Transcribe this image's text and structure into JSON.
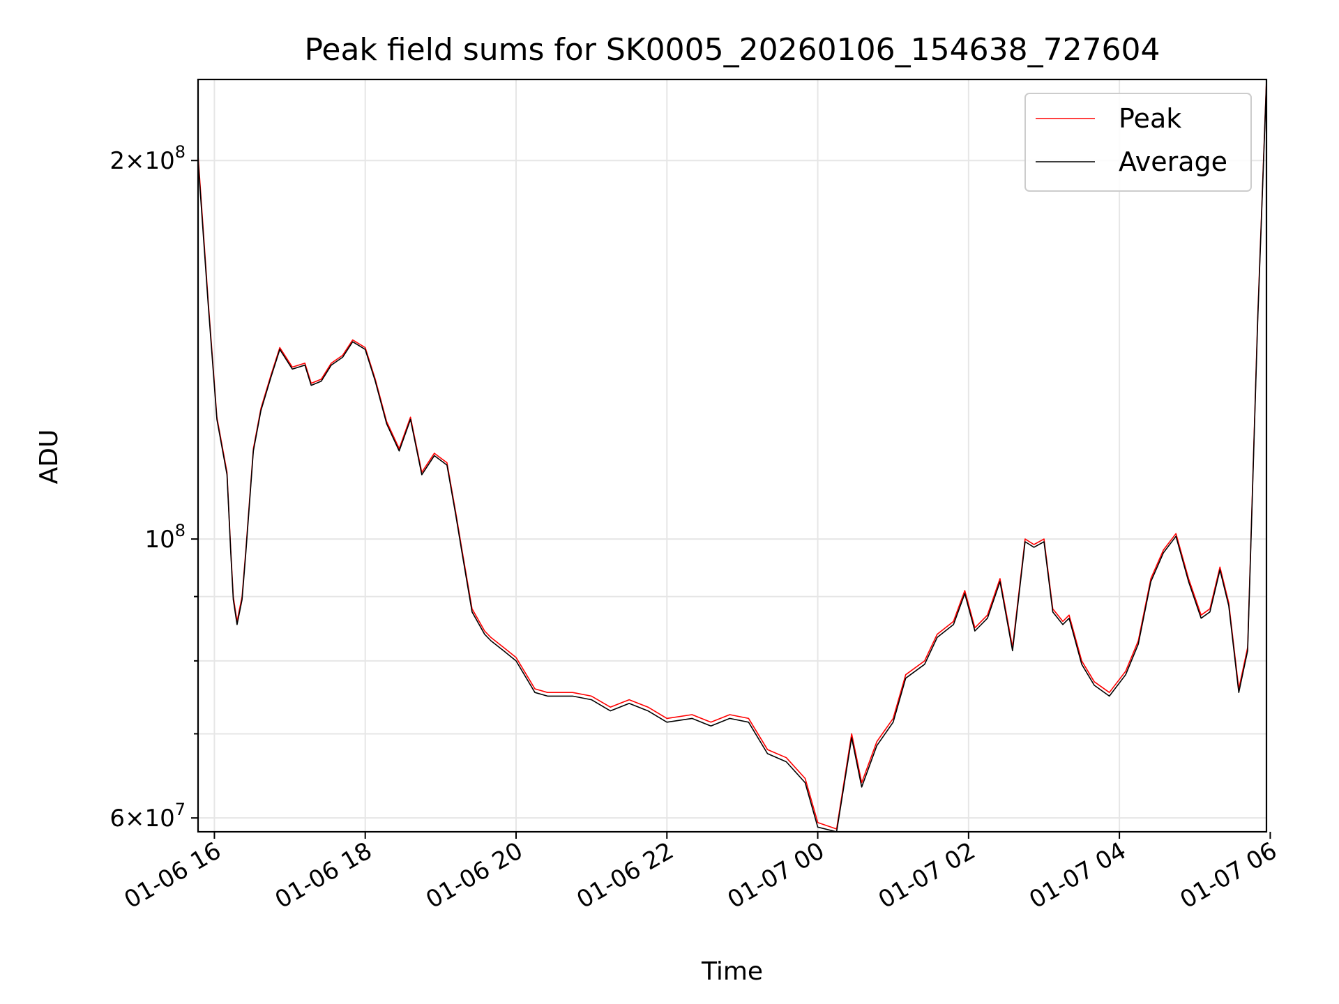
{
  "chart_data": {
    "type": "line",
    "title": "Peak field sums for SK0005_20260106_154638_727604",
    "xlabel": "Time",
    "ylabel": "ADU",
    "yscale": "log",
    "xlim": [
      "2026-01-06 15:47",
      "2026-01-07 05:57"
    ],
    "ylim": [
      58500000,
      232000000
    ],
    "grid": true,
    "legend": "top-right",
    "x_ticks": [
      "01-06 16",
      "01-06 18",
      "01-06 20",
      "01-06 22",
      "01-07 00",
      "01-07 02",
      "01-07 04",
      "01-07 06"
    ],
    "x_tick_times": [
      "2026-01-06 16:00",
      "2026-01-06 18:00",
      "2026-01-06 20:00",
      "2026-01-06 22:00",
      "2026-01-07 00:00",
      "2026-01-07 02:00",
      "2026-01-07 04:00",
      "2026-01-07 06:00"
    ],
    "y_major_ticks": [
      {
        "value": 60000000,
        "mantissa": "6",
        "exp": "7"
      },
      {
        "value": 100000000,
        "mantissa": "",
        "exp": "8"
      },
      {
        "value": 200000000,
        "mantissa": "2",
        "exp": "8"
      }
    ],
    "y_minor_grid": [
      70000000,
      80000000,
      90000000
    ],
    "x": [
      "2026-01-06 15:47",
      "2026-01-06 15:55",
      "2026-01-06 16:02",
      "2026-01-06 16:10",
      "2026-01-06 16:13",
      "2026-01-06 16:15",
      "2026-01-06 16:18",
      "2026-01-06 16:22",
      "2026-01-06 16:25",
      "2026-01-06 16:31",
      "2026-01-06 16:37",
      "2026-01-06 16:45",
      "2026-01-06 16:52",
      "2026-01-06 17:02",
      "2026-01-06 17:12",
      "2026-01-06 17:17",
      "2026-01-06 17:25",
      "2026-01-06 17:33",
      "2026-01-06 17:42",
      "2026-01-06 17:50",
      "2026-01-06 18:00",
      "2026-01-06 18:08",
      "2026-01-06 18:17",
      "2026-01-06 18:27",
      "2026-01-06 18:36",
      "2026-01-06 18:45",
      "2026-01-06 18:55",
      "2026-01-06 19:05",
      "2026-01-06 19:12",
      "2026-01-06 19:17",
      "2026-01-06 19:25",
      "2026-01-06 19:35",
      "2026-01-06 19:40",
      "2026-01-06 19:50",
      "2026-01-06 20:00",
      "2026-01-06 20:15",
      "2026-01-06 20:25",
      "2026-01-06 20:45",
      "2026-01-06 21:00",
      "2026-01-06 21:15",
      "2026-01-06 21:30",
      "2026-01-06 21:45",
      "2026-01-06 22:00",
      "2026-01-06 22:20",
      "2026-01-06 22:35",
      "2026-01-06 22:50",
      "2026-01-06 23:05",
      "2026-01-06 23:20",
      "2026-01-06 23:35",
      "2026-01-06 23:50",
      "2026-01-07 00:00",
      "2026-01-07 00:15",
      "2026-01-07 00:27",
      "2026-01-07 00:35",
      "2026-01-07 00:47",
      "2026-01-07 01:00",
      "2026-01-07 01:10",
      "2026-01-07 01:25",
      "2026-01-07 01:35",
      "2026-01-07 01:48",
      "2026-01-07 01:57",
      "2026-01-07 02:05",
      "2026-01-07 02:15",
      "2026-01-07 02:25",
      "2026-01-07 02:35",
      "2026-01-07 02:45",
      "2026-01-07 02:52",
      "2026-01-07 03:00",
      "2026-01-07 03:07",
      "2026-01-07 03:15",
      "2026-01-07 03:20",
      "2026-01-07 03:30",
      "2026-01-07 03:40",
      "2026-01-07 03:52",
      "2026-01-07 04:05",
      "2026-01-07 04:15",
      "2026-01-07 04:25",
      "2026-01-07 04:35",
      "2026-01-07 04:45",
      "2026-01-07 04:55",
      "2026-01-07 05:05",
      "2026-01-07 05:12",
      "2026-01-07 05:20",
      "2026-01-07 05:27",
      "2026-01-07 05:35",
      "2026-01-07 05:42",
      "2026-01-07 05:50",
      "2026-01-07 05:57"
    ],
    "series": [
      {
        "name": "Peak",
        "color": "#ff0000",
        "values": [
          202000000,
          155000000,
          125000000,
          113000000,
          98000000,
          90000000,
          86000000,
          90000000,
          98000000,
          118000000,
          127000000,
          135000000,
          142000000,
          137000000,
          138000000,
          133000000,
          134000000,
          138000000,
          140000000,
          144000000,
          142000000,
          134000000,
          124000000,
          118000000,
          125000000,
          113000000,
          117000000,
          115000000,
          105000000,
          98000000,
          88000000,
          84500000,
          83500000,
          82000000,
          80500000,
          76000000,
          75500000,
          75500000,
          75000000,
          73500000,
          74500000,
          73500000,
          72000000,
          72500000,
          71500000,
          72500000,
          72000000,
          68000000,
          67000000,
          64500000,
          59500000,
          58800000,
          70000000,
          64000000,
          69000000,
          72000000,
          78000000,
          80000000,
          84000000,
          86000000,
          91000000,
          85000000,
          87000000,
          93000000,
          82000000,
          100000000,
          99000000,
          100000000,
          88000000,
          86000000,
          87000000,
          80000000,
          77000000,
          75500000,
          78500000,
          83000000,
          93000000,
          98000000,
          101000000,
          93000000,
          87000000,
          88000000,
          95000000,
          89000000,
          76000000,
          82000000,
          150000000,
          232000000
        ]
      },
      {
        "name": "Average",
        "color": "#000000",
        "values": [
          200000000,
          154000000,
          124500000,
          112500000,
          97500000,
          89500000,
          85500000,
          89500000,
          97500000,
          117500000,
          126500000,
          134500000,
          141500000,
          136500000,
          137500000,
          132500000,
          133500000,
          137500000,
          139500000,
          143500000,
          141500000,
          133500000,
          123500000,
          117500000,
          124500000,
          112500000,
          116500000,
          114500000,
          104500000,
          97500000,
          87500000,
          84000000,
          83000000,
          81500000,
          80000000,
          75500000,
          75000000,
          75000000,
          74500000,
          73000000,
          74000000,
          73000000,
          71500000,
          72000000,
          71000000,
          72000000,
          71500000,
          67500000,
          66500000,
          64000000,
          59000000,
          58500000,
          69500000,
          63500000,
          68500000,
          71500000,
          77500000,
          79500000,
          83500000,
          85500000,
          90500000,
          84500000,
          86500000,
          92500000,
          81500000,
          99500000,
          98500000,
          99500000,
          87500000,
          85500000,
          86500000,
          79500000,
          76500000,
          75000000,
          78000000,
          82500000,
          92500000,
          97500000,
          100500000,
          92500000,
          86500000,
          87500000,
          94500000,
          88500000,
          75500000,
          81500000,
          149000000,
          231000000
        ]
      }
    ]
  }
}
